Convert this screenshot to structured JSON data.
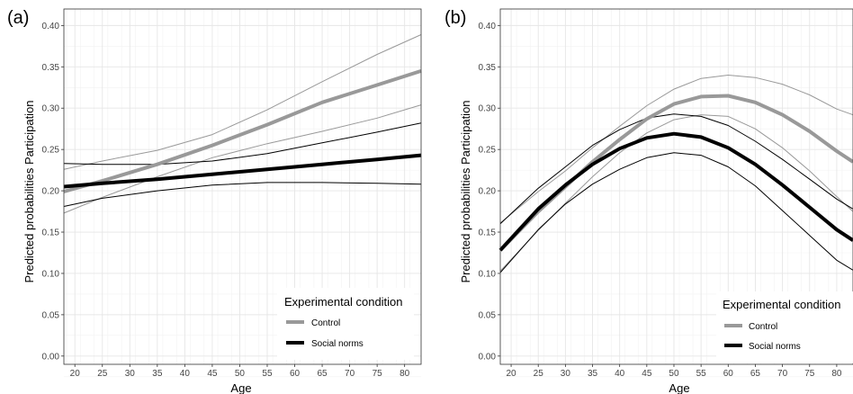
{
  "chart_data": [
    {
      "type": "line",
      "panel_tag": "(a)",
      "xlabel": "Age",
      "ylabel": "Predicted probabilities Participation",
      "xlim": [
        18,
        83
      ],
      "ylim": [
        -0.01,
        0.42
      ],
      "x_ticks": [
        20,
        25,
        30,
        35,
        40,
        45,
        50,
        55,
        60,
        65,
        70,
        75,
        80
      ],
      "y_ticks": [
        "0.00",
        "0.05",
        "0.10",
        "0.15",
        "0.20",
        "0.25",
        "0.30",
        "0.35",
        "0.40"
      ],
      "grid": true,
      "legend": {
        "title": "Experimental condition",
        "position": "bottom-right"
      },
      "series": [
        {
          "name": "Control",
          "color": "#999999",
          "x": [
            18,
            25,
            35,
            45,
            55,
            65,
            75,
            83
          ],
          "y": [
            0.199,
            0.212,
            0.232,
            0.255,
            0.28,
            0.307,
            0.328,
            0.345
          ],
          "lower": [
            0.173,
            0.192,
            0.217,
            0.24,
            0.257,
            0.272,
            0.288,
            0.304
          ],
          "upper": [
            0.226,
            0.236,
            0.249,
            0.268,
            0.298,
            0.332,
            0.365,
            0.389
          ]
        },
        {
          "name": "Social norms",
          "color": "#000000",
          "x": [
            18,
            25,
            35,
            45,
            55,
            65,
            75,
            83
          ],
          "y": [
            0.205,
            0.209,
            0.214,
            0.22,
            0.226,
            0.232,
            0.238,
            0.243
          ],
          "lower": [
            0.181,
            0.191,
            0.2,
            0.207,
            0.21,
            0.21,
            0.209,
            0.208
          ],
          "upper": [
            0.233,
            0.232,
            0.232,
            0.236,
            0.245,
            0.258,
            0.271,
            0.282
          ]
        }
      ]
    },
    {
      "type": "line",
      "panel_tag": "(b)",
      "xlabel": "Age",
      "ylabel": "Predicted probabilities Participation",
      "xlim": [
        18,
        83
      ],
      "ylim": [
        -0.01,
        0.42
      ],
      "x_ticks": [
        20,
        25,
        30,
        35,
        40,
        45,
        50,
        55,
        60,
        65,
        70,
        75,
        80
      ],
      "y_ticks": [
        "0.00",
        "0.05",
        "0.10",
        "0.15",
        "0.20",
        "0.25",
        "0.30",
        "0.35",
        "0.40"
      ],
      "grid": true,
      "legend": {
        "title": "Experimental condition",
        "position": "bottom-right"
      },
      "series": [
        {
          "name": "Control",
          "color": "#999999",
          "x": [
            18,
            25,
            30,
            35,
            40,
            45,
            50,
            55,
            60,
            65,
            70,
            75,
            80,
            83
          ],
          "y": [
            0.128,
            0.175,
            0.205,
            0.235,
            0.262,
            0.287,
            0.305,
            0.314,
            0.315,
            0.307,
            0.292,
            0.272,
            0.248,
            0.235
          ],
          "lower": [
            0.103,
            0.152,
            0.185,
            0.217,
            0.246,
            0.27,
            0.286,
            0.292,
            0.29,
            0.275,
            0.252,
            0.224,
            0.193,
            0.175
          ],
          "upper": [
            0.161,
            0.199,
            0.224,
            0.252,
            0.278,
            0.303,
            0.323,
            0.336,
            0.34,
            0.337,
            0.329,
            0.316,
            0.299,
            0.292
          ]
        },
        {
          "name": "Social norms",
          "color": "#000000",
          "x": [
            18,
            25,
            30,
            35,
            40,
            45,
            50,
            55,
            60,
            65,
            70,
            75,
            80,
            83
          ],
          "y": [
            0.128,
            0.178,
            0.207,
            0.232,
            0.251,
            0.264,
            0.269,
            0.265,
            0.252,
            0.232,
            0.207,
            0.18,
            0.153,
            0.14
          ],
          "lower": [
            0.101,
            0.153,
            0.184,
            0.208,
            0.226,
            0.24,
            0.246,
            0.243,
            0.229,
            0.206,
            0.176,
            0.146,
            0.116,
            0.104
          ],
          "upper": [
            0.16,
            0.203,
            0.229,
            0.255,
            0.274,
            0.288,
            0.293,
            0.29,
            0.279,
            0.26,
            0.238,
            0.214,
            0.19,
            0.178
          ]
        }
      ]
    }
  ]
}
